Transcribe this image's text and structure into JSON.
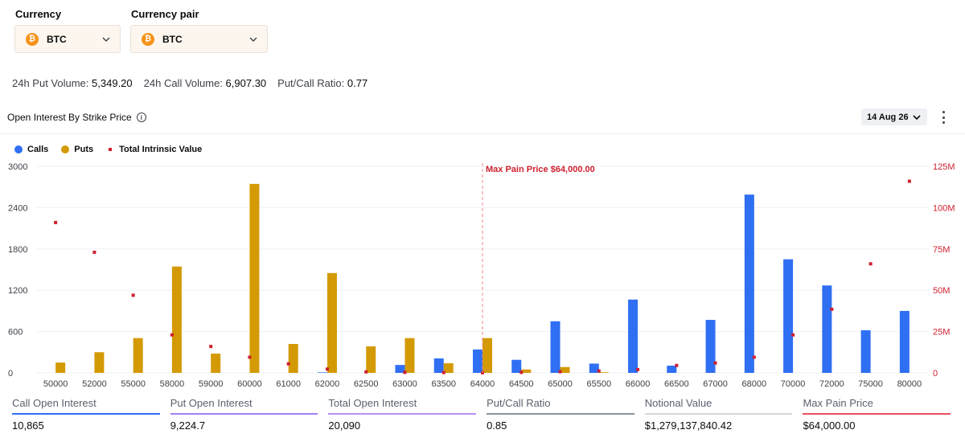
{
  "filters": {
    "currency_label": "Currency",
    "currency_value": "BTC",
    "pair_label": "Currency pair",
    "pair_value": "BTC",
    "coin_glyph": "₿"
  },
  "stats": {
    "put_volume_label": "24h Put Volume:",
    "put_volume_value": "5,349.20",
    "call_volume_label": "24h Call Volume:",
    "call_volume_value": "6,907.30",
    "ratio_label": "Put/Call Ratio:",
    "ratio_value": "0.77"
  },
  "section": {
    "title": "Open Interest By Strike Price",
    "info_glyph": "i",
    "date": "14 Aug 26"
  },
  "legend": {
    "calls": "Calls",
    "puts": "Puts",
    "intrinsic": "Total Intrinsic Value"
  },
  "colors": {
    "calls": "#2f6ff3",
    "puts": "#d49a05",
    "intrinsic": "#cf202f",
    "max_pain_line": "#f08a8a"
  },
  "chart_data": {
    "type": "bar",
    "categories": [
      "50000",
      "52000",
      "55000",
      "58000",
      "59000",
      "60000",
      "61000",
      "62000",
      "62500",
      "63000",
      "63500",
      "64000",
      "64500",
      "65000",
      "65500",
      "66000",
      "66500",
      "67000",
      "68000",
      "70000",
      "72000",
      "75000",
      "80000"
    ],
    "series": [
      {
        "name": "Calls",
        "axis": "left",
        "values": [
          0,
          0,
          0,
          0,
          0,
          0,
          0,
          8,
          0,
          115,
          210,
          340,
          190,
          750,
          135,
          1065,
          105,
          770,
          2590,
          1650,
          1270,
          620,
          900
        ]
      },
      {
        "name": "Puts",
        "axis": "left",
        "values": [
          150,
          300,
          505,
          1545,
          280,
          2745,
          420,
          1450,
          385,
          505,
          140,
          505,
          50,
          85,
          10,
          0,
          0,
          0,
          0,
          0,
          0,
          0,
          0
        ]
      },
      {
        "name": "Total Intrinsic Value",
        "type": "scatter",
        "axis": "right",
        "values": [
          91,
          73,
          47,
          23,
          16,
          9.5,
          5.5,
          2.3,
          0.6,
          0.3,
          0.2,
          0.1,
          0.3,
          0.7,
          1.2,
          2,
          4.5,
          6,
          9.5,
          23,
          38.5,
          66,
          116
        ]
      }
    ],
    "y_left": {
      "min": 0,
      "max": 3000,
      "ticks": [
        0,
        600,
        1200,
        1800,
        2400,
        3000
      ],
      "tick_labels": [
        "0",
        "600",
        "1200",
        "1800",
        "2400",
        "3000"
      ]
    },
    "y_right": {
      "min": 0,
      "max": 125,
      "ticks": [
        0,
        25,
        50,
        75,
        100,
        125
      ],
      "tick_labels": [
        "0",
        "25M",
        "50M",
        "75M",
        "100M",
        "125M"
      ]
    },
    "max_pain": {
      "category": "64000",
      "label": "Max Pain Price $64,000.00"
    }
  },
  "footer": [
    {
      "label": "Call Open Interest",
      "value": "10,865",
      "color": "#2f6ff3"
    },
    {
      "label": "Put Open Interest",
      "value": "9,224.7",
      "color": "#a57ff2"
    },
    {
      "label": "Total Open Interest",
      "value": "20,090",
      "color": "#b791f5"
    },
    {
      "label": "Put/Call Ratio",
      "value": "0.85",
      "color": "#8a919e"
    },
    {
      "label": "Notional Value",
      "value": "$1,279,137,840.42",
      "color": "#d5d8dd"
    },
    {
      "label": "Max Pain Price",
      "value": "$64,000.00",
      "color": "#e8525f"
    }
  ]
}
